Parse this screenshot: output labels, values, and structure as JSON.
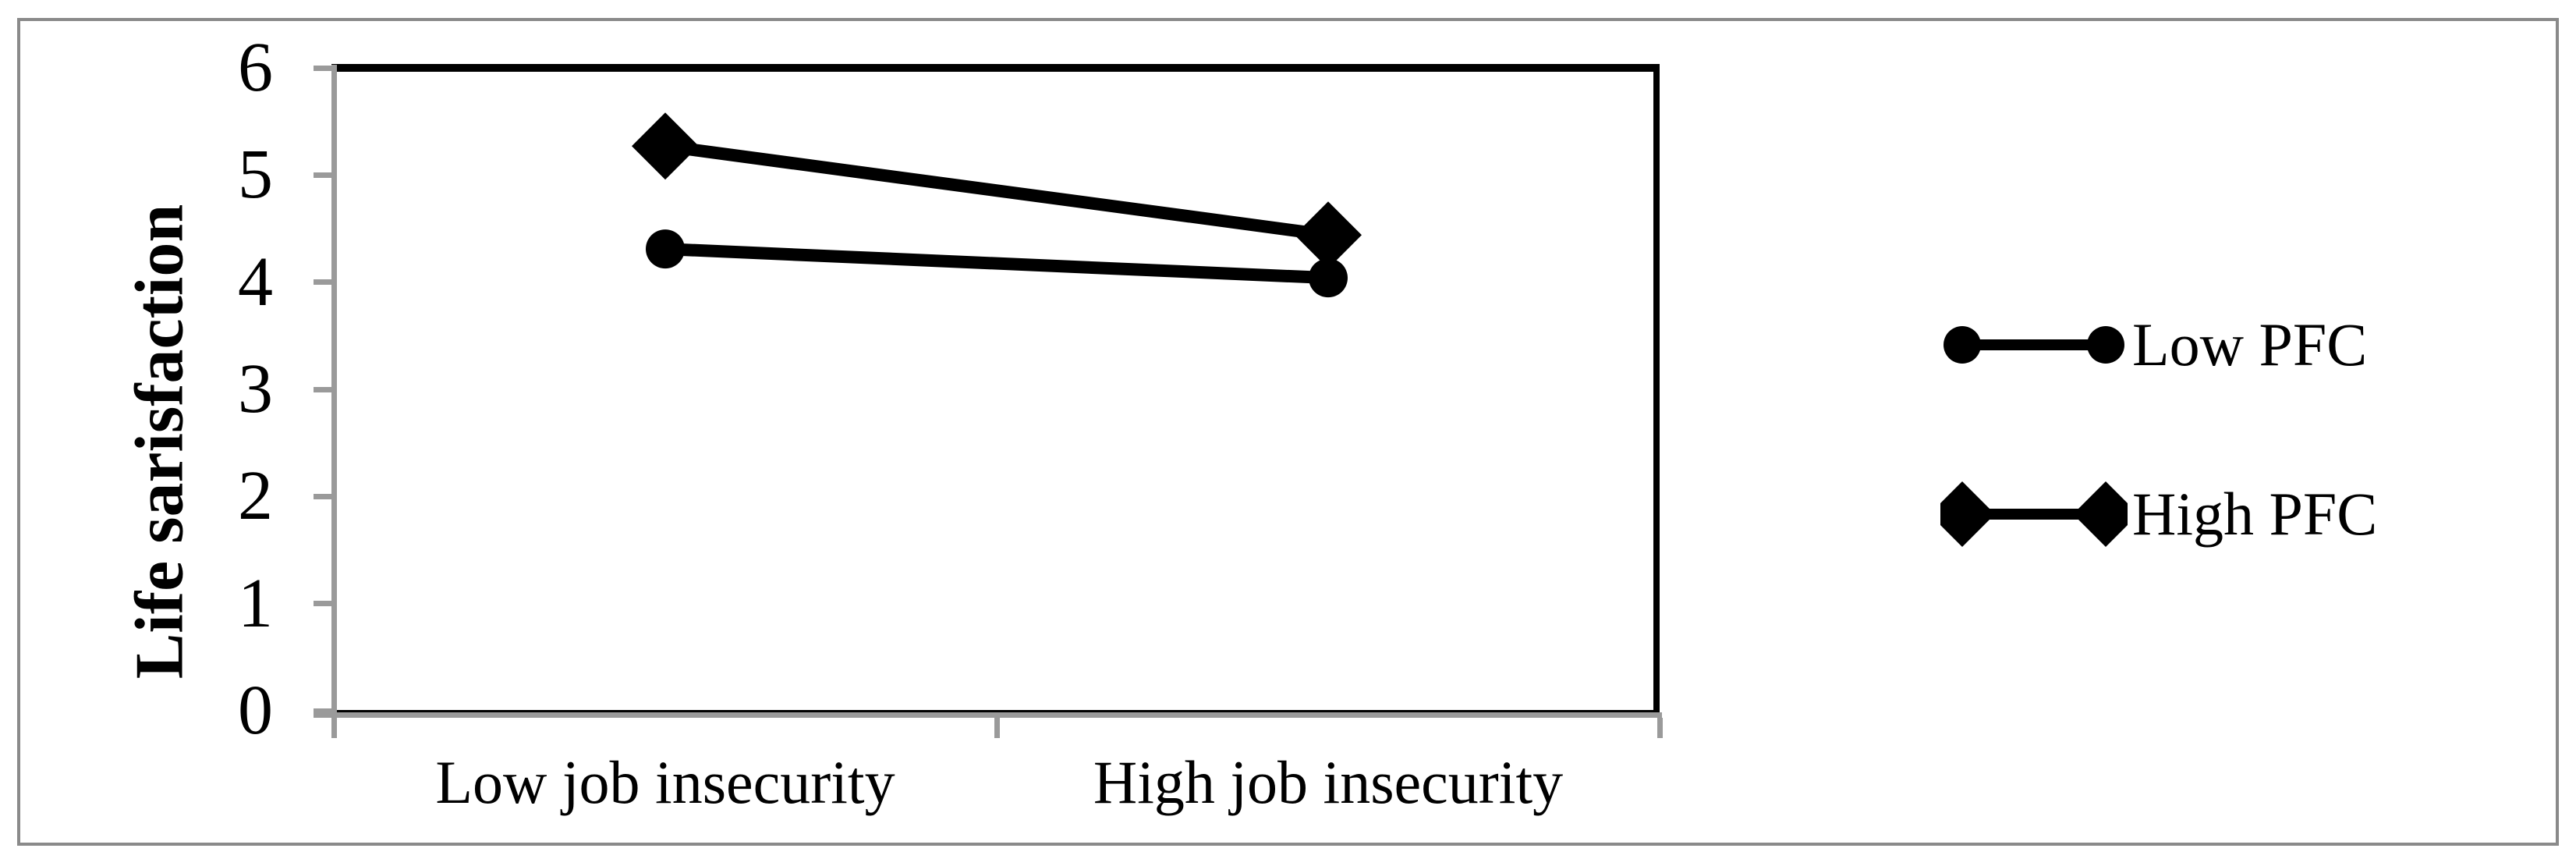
{
  "figure": {
    "background": "#ffffff",
    "border_color": "#8a8a8a"
  },
  "chart_data": {
    "type": "line",
    "title": "",
    "xlabel": "",
    "ylabel": "Life sarisfaction",
    "categories": [
      "Low job insecurity",
      "High job insecurity"
    ],
    "series": [
      {
        "name": "Low PFC",
        "marker": "circle",
        "values": [
          4.31,
          4.04
        ]
      },
      {
        "name": "High PFC",
        "marker": "diamond",
        "values": [
          5.27,
          4.44
        ]
      }
    ],
    "ylim": [
      0,
      6
    ],
    "yticks": [
      0,
      1,
      2,
      3,
      4,
      5,
      6
    ],
    "grid": false,
    "legend_position": "right-outside",
    "colors": {
      "series_color": "#000000",
      "axis_color": "#9a9a9a",
      "plot_border_color": "#000000"
    }
  }
}
